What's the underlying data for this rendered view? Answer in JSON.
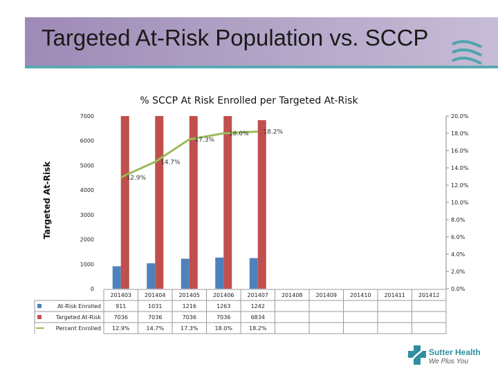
{
  "slide": {
    "title": "Targeted At-Risk Population vs. SCCP",
    "logo_name": "Sutter Health",
    "logo_tagline": "We Plus You"
  },
  "chart_data": {
    "type": "bar",
    "title": "% SCCP At Risk Enrolled per Targeted At-Risk",
    "ylabel": "Targeted At-Risk",
    "ylim": [
      0,
      7000
    ],
    "y2lim": [
      0,
      0.2
    ],
    "y_ticks": [
      "0",
      "1000",
      "2000",
      "3000",
      "4000",
      "5000",
      "6000",
      "7000"
    ],
    "y2_ticks": [
      "0.0%",
      "2.0%",
      "4.0%",
      "6.0%",
      "8.0%",
      "10.0%",
      "12.0%",
      "14.0%",
      "16.0%",
      "18.0%",
      "20.0%"
    ],
    "categories": [
      "201403",
      "201404",
      "201405",
      "201406",
      "201407",
      "201408",
      "201409",
      "201410",
      "201411",
      "201412"
    ],
    "grid": false,
    "series": [
      {
        "name": "At-Risk Enrolled",
        "type": "bar",
        "axis": "left",
        "color": "#4f81bd",
        "values": [
          911,
          1031,
          1216,
          1263,
          1242,
          null,
          null,
          null,
          null,
          null
        ],
        "labels": [
          "911",
          "1031",
          "1216",
          "1263",
          "1242",
          "",
          "",
          "",
          "",
          ""
        ]
      },
      {
        "name": "Targeted At-Risk",
        "type": "bar",
        "axis": "left",
        "color": "#c0504d",
        "values": [
          7036,
          7036,
          7036,
          7036,
          6834,
          null,
          null,
          null,
          null,
          null
        ],
        "labels": [
          "7036",
          "7036",
          "7036",
          "7036",
          "6834",
          "",
          "",
          "",
          "",
          ""
        ]
      },
      {
        "name": "Percent Enrolled",
        "type": "line",
        "axis": "right",
        "color": "#9bbb59",
        "values": [
          0.129,
          0.147,
          0.173,
          0.18,
          0.182,
          null,
          null,
          null,
          null,
          null
        ],
        "labels": [
          "12.9%",
          "14.7%",
          "17.3%",
          "18.0%",
          "18.2%",
          "",
          "",
          "",
          "",
          ""
        ]
      }
    ]
  }
}
